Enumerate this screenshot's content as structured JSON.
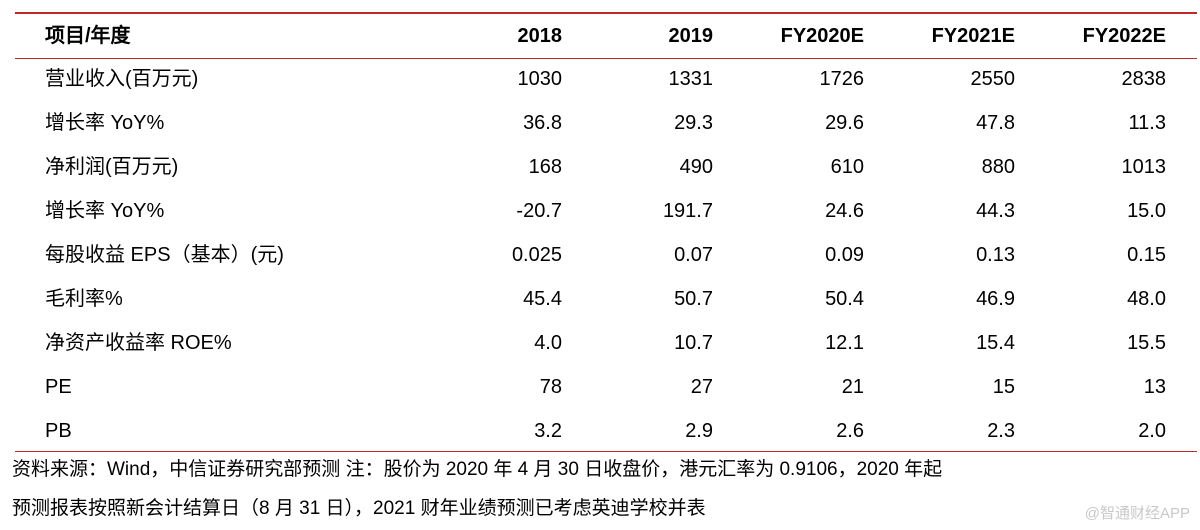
{
  "table": {
    "header": [
      "项目/年度",
      "2018",
      "2019",
      "FY2020E",
      "FY2021E",
      "FY2022E"
    ],
    "rows": [
      [
        "营业收入(百万元)",
        "1030",
        "1331",
        "1726",
        "2550",
        "2838"
      ],
      [
        "增长率 YoY%",
        "36.8",
        "29.3",
        "29.6",
        "47.8",
        "11.3"
      ],
      [
        "净利润(百万元)",
        "168",
        "490",
        "610",
        "880",
        "1013"
      ],
      [
        "增长率 YoY%",
        "-20.7",
        "191.7",
        "24.6",
        "44.3",
        "15.0"
      ],
      [
        "每股收益 EPS（基本）(元)",
        "0.025",
        "0.07",
        "0.09",
        "0.13",
        "0.15"
      ],
      [
        "毛利率%",
        "45.4",
        "50.7",
        "50.4",
        "46.9",
        "48.0"
      ],
      [
        "净资产收益率 ROE%",
        "4.0",
        "10.7",
        "12.1",
        "15.4",
        "15.5"
      ],
      [
        "PE",
        "78",
        "27",
        "21",
        "15",
        "13"
      ],
      [
        "PB",
        "3.2",
        "2.9",
        "2.6",
        "2.3",
        "2.0"
      ]
    ]
  },
  "footnote": [
    "资料来源：Wind，中信证券研究部预测  注：股价为 2020 年 4 月 30 日收盘价，港元汇率为 0.9106，2020 年起",
    "预测报表按照新会计结算日（8 月 31 日），2021 财年业绩预测已考虑英迪学校并表"
  ],
  "watermark": "@智通财经APP"
}
